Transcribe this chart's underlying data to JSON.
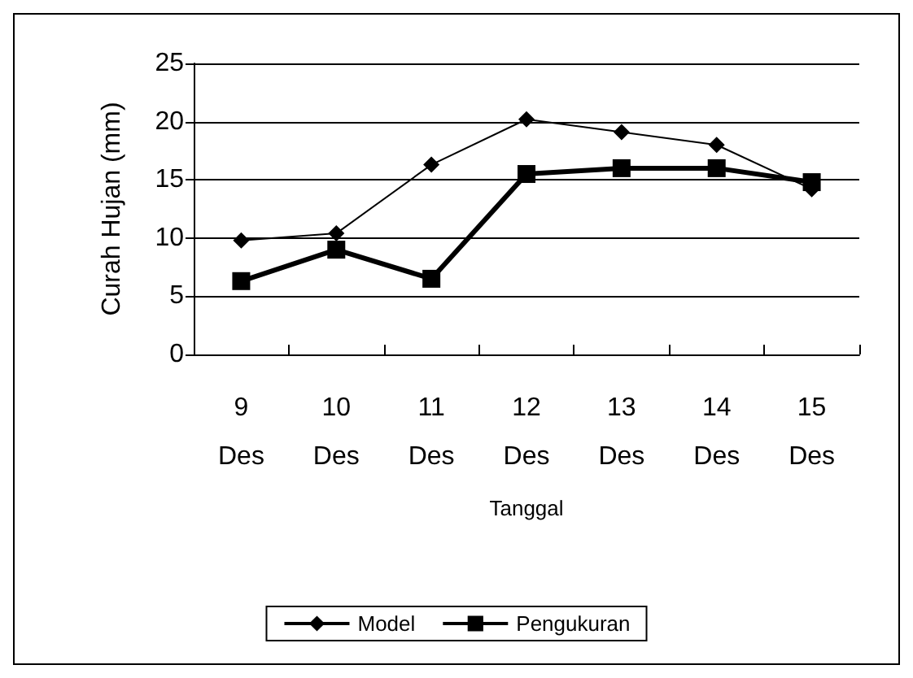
{
  "chart_data": {
    "type": "line",
    "xlabel": "Tanggal",
    "ylabel": "Curah Hujan (mm)",
    "categories": [
      "9 Des",
      "10 Des",
      "11 Des",
      "12 Des",
      "13 Des",
      "14 Des",
      "15 Des"
    ],
    "series": [
      {
        "name": "Model",
        "color": "#000000",
        "marker": "diamond",
        "values": [
          9.8,
          10.4,
          16.3,
          20.2,
          19.1,
          18.0,
          14.2
        ]
      },
      {
        "name": "Pengukuran",
        "color": "#000000",
        "marker": "square",
        "values": [
          6.3,
          9.0,
          6.5,
          15.5,
          16.0,
          16.0,
          14.8
        ]
      }
    ],
    "ylim": [
      0,
      25
    ],
    "yticks": [
      0,
      5,
      10,
      15,
      20,
      25
    ],
    "grid": "y",
    "legend": "bottom"
  }
}
